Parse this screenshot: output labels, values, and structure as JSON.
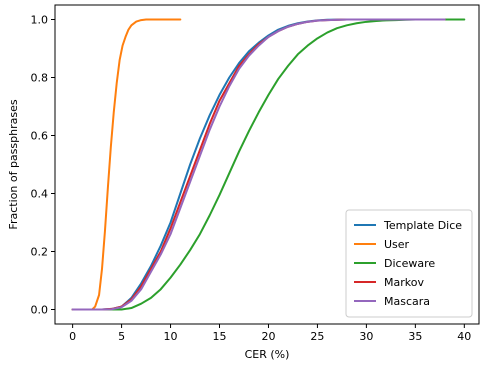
{
  "chart_data": {
    "type": "line",
    "title": "",
    "xlabel": "CER (%)",
    "ylabel": "Fraction of passphrases",
    "xlim": [
      -1.8,
      41.5
    ],
    "ylim": [
      -0.05,
      1.05
    ],
    "xticks": [
      0,
      5,
      10,
      15,
      20,
      25,
      30,
      35,
      40
    ],
    "yticks": [
      0.0,
      0.2,
      0.4,
      0.6,
      0.8,
      1.0
    ],
    "xtick_labels": [
      "0",
      "5",
      "10",
      "15",
      "20",
      "25",
      "30",
      "35",
      "40"
    ],
    "ytick_labels": [
      "0.0",
      "0.2",
      "0.4",
      "0.6",
      "0.8",
      "1.0"
    ],
    "grid": false,
    "legend": "bottom-right",
    "series": [
      {
        "name": "Template Dice",
        "color": "#1f77b4",
        "x": [
          0,
          3,
          4,
          5,
          6,
          7,
          8,
          9,
          10,
          11,
          12,
          13,
          14,
          15,
          16,
          17,
          18,
          19,
          20,
          21,
          22,
          23,
          24,
          25,
          26,
          28,
          30,
          32,
          34,
          36,
          38,
          39
        ],
        "y": [
          0.0,
          0.0,
          0.002,
          0.01,
          0.04,
          0.09,
          0.15,
          0.22,
          0.3,
          0.4,
          0.5,
          0.59,
          0.67,
          0.74,
          0.8,
          0.85,
          0.89,
          0.92,
          0.945,
          0.965,
          0.978,
          0.987,
          0.993,
          0.997,
          0.999,
          1.0,
          1.0,
          1.0,
          1.0,
          1.0,
          1.0,
          1.0
        ]
      },
      {
        "name": "User",
        "color": "#ff7f0e",
        "x": [
          0,
          1,
          2,
          2.3,
          2.7,
          3.0,
          3.3,
          3.6,
          3.9,
          4.2,
          4.5,
          4.8,
          5.1,
          5.4,
          5.7,
          6.0,
          6.5,
          7.0,
          7.5,
          8.0,
          9.0,
          10.0,
          11.0
        ],
        "y": [
          0.0,
          0.0,
          0.0,
          0.01,
          0.05,
          0.14,
          0.27,
          0.42,
          0.56,
          0.68,
          0.78,
          0.86,
          0.91,
          0.94,
          0.965,
          0.98,
          0.993,
          0.998,
          1.0,
          1.0,
          1.0,
          1.0,
          1.0
        ]
      },
      {
        "name": "Diceware",
        "color": "#2ca02c",
        "x": [
          0,
          3,
          5,
          6,
          7,
          8,
          9,
          10,
          11,
          12,
          13,
          14,
          15,
          16,
          17,
          18,
          19,
          20,
          21,
          22,
          23,
          24,
          25,
          26,
          27,
          28,
          29,
          30,
          31,
          32,
          33,
          34,
          35,
          36,
          37,
          38,
          39,
          40
        ],
        "y": [
          0.0,
          0.0,
          0.0,
          0.005,
          0.02,
          0.04,
          0.07,
          0.11,
          0.155,
          0.205,
          0.26,
          0.325,
          0.395,
          0.47,
          0.545,
          0.615,
          0.68,
          0.74,
          0.795,
          0.84,
          0.88,
          0.91,
          0.935,
          0.955,
          0.97,
          0.98,
          0.987,
          0.992,
          0.995,
          0.997,
          0.998,
          0.999,
          1.0,
          1.0,
          1.0,
          1.0,
          1.0,
          1.0
        ]
      },
      {
        "name": "Markov",
        "color": "#d62728",
        "x": [
          0,
          3,
          4,
          5,
          6,
          7,
          8,
          9,
          10,
          11,
          12,
          13,
          14,
          15,
          16,
          17,
          18,
          19,
          20,
          21,
          22,
          23,
          24,
          25,
          26,
          28,
          30,
          32,
          34,
          36,
          38
        ],
        "y": [
          0.0,
          0.0,
          0.002,
          0.01,
          0.035,
          0.08,
          0.14,
          0.2,
          0.28,
          0.37,
          0.46,
          0.55,
          0.64,
          0.72,
          0.78,
          0.84,
          0.88,
          0.915,
          0.94,
          0.96,
          0.975,
          0.985,
          0.992,
          0.996,
          0.998,
          1.0,
          1.0,
          1.0,
          1.0,
          1.0,
          1.0
        ]
      },
      {
        "name": "Mascara",
        "color": "#9467bd",
        "x": [
          0,
          3,
          4,
          5,
          6,
          7,
          8,
          9,
          10,
          11,
          12,
          13,
          14,
          15,
          16,
          17,
          18,
          19,
          20,
          21,
          22,
          23,
          24,
          25,
          26,
          28,
          30,
          32,
          34,
          36,
          38
        ],
        "y": [
          0.0,
          0.0,
          0.001,
          0.008,
          0.03,
          0.07,
          0.13,
          0.19,
          0.26,
          0.35,
          0.44,
          0.53,
          0.62,
          0.7,
          0.77,
          0.83,
          0.875,
          0.91,
          0.94,
          0.96,
          0.975,
          0.985,
          0.992,
          0.996,
          0.998,
          1.0,
          1.0,
          1.0,
          1.0,
          1.0,
          1.0
        ]
      }
    ]
  }
}
